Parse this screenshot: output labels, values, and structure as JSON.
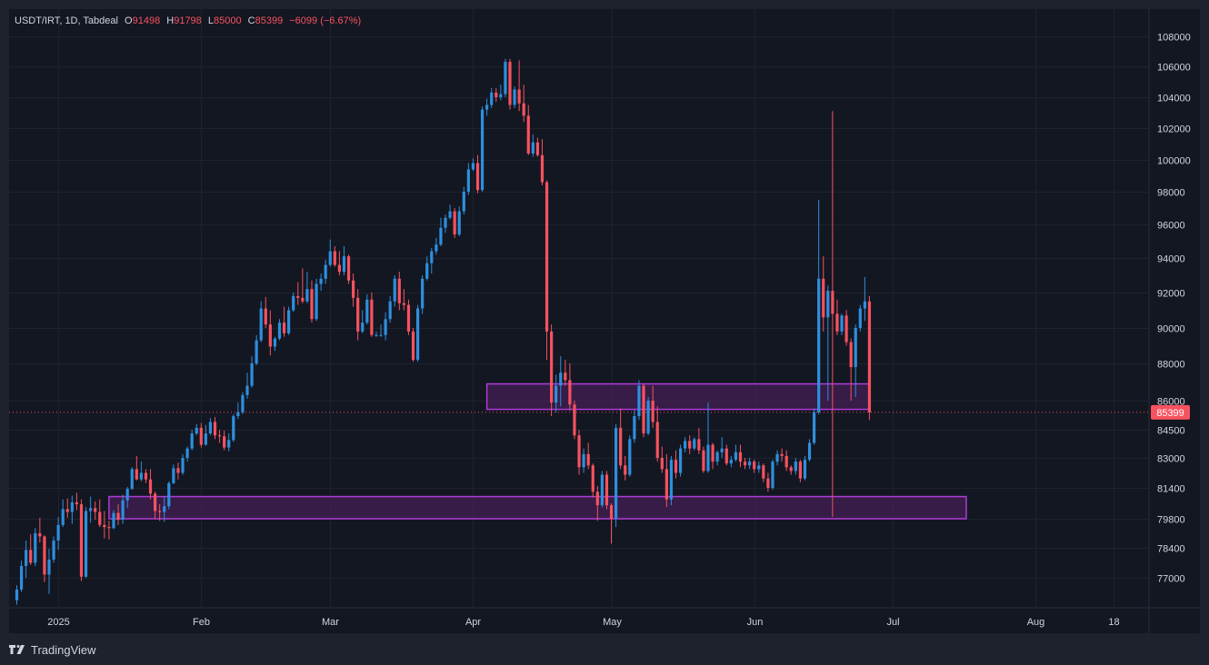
{
  "legend": {
    "symbol": "USDT/IRT",
    "interval": "1D",
    "exchange": "Tabdeal",
    "o_label": "O",
    "o_value": "91498",
    "h_label": "H",
    "h_value": "91798",
    "l_label": "L",
    "l_value": "85000",
    "c_label": "C",
    "c_value": "85399",
    "change": "−6099 (−6.67%)"
  },
  "brand": {
    "name": "TradingView"
  },
  "colors": {
    "background": "#131722",
    "frame": "#1e222d",
    "grid": "#1f232d",
    "text": "#d1d4dc",
    "up": "#2e8fdd",
    "down": "#f7525f",
    "zone_fill": "#4a1f5c",
    "zone_stroke": "#b03ad8"
  },
  "chart_data": {
    "type": "candlestick",
    "symbol": "USDT/IRT",
    "interval": "1D",
    "y_ticks": [
      108000,
      106000,
      104000,
      102000,
      100000,
      98000,
      96000,
      94000,
      92000,
      90000,
      88000,
      86000,
      84500,
      83000,
      81400,
      79800,
      78400,
      77000
    ],
    "y_tick_labels": [
      "108000",
      "106000",
      "104000",
      "102000",
      "100000",
      "98000",
      "96000",
      "94000",
      "92000",
      "90000",
      "88000",
      "86000",
      "84500",
      "83000",
      "81400",
      "79800",
      "78400",
      "77000"
    ],
    "x_tick_labels": [
      "2025",
      "Feb",
      "Mar",
      "Apr",
      "May",
      "Jun",
      "Jul",
      "Aug",
      "18"
    ],
    "x_tick_dates": [
      "2025-01-01",
      "2025-02-01",
      "2025-03-01",
      "2025-04-01",
      "2025-05-01",
      "2025-06-01",
      "2025-07-01",
      "2025-08-01",
      "2025-08-18"
    ],
    "first_date": "2024-12-23",
    "last_close": 85399,
    "last_price_label": "85399",
    "zones": [
      {
        "from_date": "2025-04-04",
        "to_date": "2025-06-26",
        "low": 85550,
        "high": 86900
      },
      {
        "from_date": "2025-01-12",
        "to_date": "2025-07-17",
        "low": 79800,
        "high": 80950
      }
    ],
    "candles": [
      [
        75950,
        76650,
        75750,
        76450
      ],
      [
        76450,
        77800,
        76350,
        77550
      ],
      [
        77550,
        78750,
        77000,
        78300
      ],
      [
        78300,
        79050,
        77600,
        77700
      ],
      [
        77700,
        79350,
        77550,
        79100
      ],
      [
        79100,
        79850,
        78650,
        78950
      ],
      [
        78950,
        79000,
        76800,
        77150
      ],
      [
        77150,
        78350,
        76250,
        77850
      ],
      [
        77850,
        78950,
        77700,
        78750
      ],
      [
        78750,
        79900,
        78300,
        79500
      ],
      [
        79500,
        80800,
        79400,
        80300
      ],
      [
        80300,
        80850,
        79850,
        80150
      ],
      [
        80150,
        81000,
        79550,
        80650
      ],
      [
        80650,
        81150,
        80250,
        80550
      ],
      [
        80550,
        80800,
        76850,
        77050
      ],
      [
        77050,
        80400,
        77000,
        80200
      ],
      [
        80200,
        80950,
        79600,
        80350
      ],
      [
        80350,
        80700,
        79750,
        80150
      ],
      [
        80150,
        80800,
        79400,
        79500
      ],
      [
        79500,
        80200,
        78850,
        79400
      ],
      [
        79400,
        79700,
        78800,
        79350
      ],
      [
        79350,
        80250,
        79300,
        80100
      ],
      [
        80100,
        80550,
        79500,
        79750
      ],
      [
        79750,
        81050,
        79550,
        80750
      ],
      [
        80750,
        81450,
        80350,
        81350
      ],
      [
        81350,
        82500,
        81300,
        82400
      ],
      [
        82400,
        83100,
        81800,
        81850
      ],
      [
        81850,
        82800,
        81750,
        82200
      ],
      [
        82200,
        82400,
        81650,
        81850
      ],
      [
        81850,
        82400,
        80800,
        81100
      ],
      [
        81100,
        81200,
        79800,
        80200
      ],
      [
        80200,
        80550,
        79700,
        80150
      ],
      [
        80150,
        80950,
        79650,
        80450
      ],
      [
        80450,
        81750,
        80300,
        81650
      ],
      [
        81650,
        82650,
        81600,
        82450
      ],
      [
        82450,
        82750,
        81850,
        82200
      ],
      [
        82200,
        83200,
        82100,
        83000
      ],
      [
        83000,
        83600,
        82800,
        83500
      ],
      [
        83500,
        84500,
        83400,
        84300
      ],
      [
        84300,
        84800,
        84200,
        84600
      ],
      [
        84600,
        84850,
        83550,
        83700
      ],
      [
        83700,
        84750,
        83650,
        84300
      ],
      [
        84300,
        85100,
        84200,
        84900
      ],
      [
        84900,
        85150,
        84000,
        84200
      ],
      [
        84200,
        84500,
        83800,
        84150
      ],
      [
        84150,
        84450,
        83400,
        83550
      ],
      [
        83550,
        84300,
        83350,
        83950
      ],
      [
        83950,
        85300,
        83850,
        85200
      ],
      [
        85200,
        85900,
        85050,
        85400
      ],
      [
        85400,
        86450,
        85300,
        86300
      ],
      [
        86300,
        87500,
        86100,
        86800
      ],
      [
        86800,
        88400,
        86700,
        88000
      ],
      [
        88000,
        89600,
        87900,
        89300
      ],
      [
        89300,
        91500,
        89200,
        91100
      ],
      [
        91100,
        91750,
        90000,
        90200
      ],
      [
        90200,
        91000,
        88450,
        88950
      ],
      [
        88950,
        89500,
        88700,
        89400
      ],
      [
        89400,
        90500,
        89300,
        90300
      ],
      [
        90300,
        91200,
        89500,
        89700
      ],
      [
        89700,
        91200,
        89600,
        91000
      ],
      [
        91000,
        92000,
        90900,
        91800
      ],
      [
        91800,
        92600,
        91300,
        91700
      ],
      [
        91700,
        93400,
        91400,
        91500
      ],
      [
        91500,
        93200,
        91400,
        92200
      ],
      [
        92200,
        92700,
        90300,
        90500
      ],
      [
        90500,
        92800,
        90400,
        92500
      ],
      [
        92500,
        93100,
        92100,
        92800
      ],
      [
        92800,
        93900,
        92500,
        93600
      ],
      [
        93600,
        95100,
        93500,
        94400
      ],
      [
        94400,
        94700,
        93500,
        93600
      ],
      [
        93600,
        94400,
        93000,
        93200
      ],
      [
        93200,
        94700,
        93000,
        94100
      ],
      [
        94100,
        94200,
        92500,
        92700
      ],
      [
        92700,
        93100,
        91200,
        91700
      ],
      [
        91700,
        92200,
        89300,
        89800
      ],
      [
        89800,
        91000,
        89700,
        90300
      ],
      [
        90300,
        91900,
        90200,
        91600
      ],
      [
        91600,
        92000,
        89500,
        89600
      ],
      [
        89600,
        89800,
        89500,
        89600
      ],
      [
        89600,
        90200,
        89500,
        89600
      ],
      [
        89600,
        90900,
        89300,
        90500
      ],
      [
        90500,
        91800,
        90300,
        91500
      ],
      [
        91500,
        93000,
        91200,
        92800
      ],
      [
        92800,
        93200,
        91000,
        91400
      ],
      [
        91400,
        92200,
        91000,
        91300
      ],
      [
        91300,
        91600,
        89600,
        89800
      ],
      [
        89800,
        90000,
        88100,
        88200
      ],
      [
        88200,
        91300,
        88100,
        91100
      ],
      [
        91100,
        93000,
        90800,
        92800
      ],
      [
        92800,
        94100,
        92700,
        93700
      ],
      [
        93700,
        94600,
        93100,
        94400
      ],
      [
        94400,
        95200,
        94200,
        94800
      ],
      [
        94800,
        96400,
        94700,
        95800
      ],
      [
        95800,
        96600,
        95500,
        96400
      ],
      [
        96400,
        97200,
        96300,
        96800
      ],
      [
        96800,
        97000,
        95200,
        95400
      ],
      [
        95400,
        97100,
        95300,
        96800
      ],
      [
        96800,
        98300,
        96600,
        98000
      ],
      [
        98000,
        99800,
        97800,
        99400
      ],
      [
        99400,
        100100,
        99300,
        99800
      ],
      [
        99800,
        100300,
        97900,
        98100
      ],
      [
        98100,
        103400,
        98000,
        103200
      ],
      [
        103200,
        103900,
        102800,
        103500
      ],
      [
        103500,
        104600,
        103300,
        104300
      ],
      [
        104300,
        104600,
        103700,
        104000
      ],
      [
        104000,
        104800,
        103800,
        104200
      ],
      [
        104200,
        106500,
        104000,
        106300
      ],
      [
        106300,
        106500,
        103200,
        103500
      ],
      [
        103500,
        104700,
        103300,
        104500
      ],
      [
        104500,
        106400,
        103100,
        103600
      ],
      [
        103600,
        104800,
        102400,
        102800
      ],
      [
        102800,
        103500,
        100300,
        100400
      ],
      [
        100400,
        101600,
        100200,
        101100
      ],
      [
        101100,
        101400,
        100200,
        100300
      ],
      [
        100300,
        101300,
        98400,
        98600
      ],
      [
        98600,
        98700,
        88200,
        89800
      ],
      [
        89800,
        90200,
        85200,
        85900
      ],
      [
        85900,
        87400,
        85400,
        86800
      ],
      [
        86800,
        88400,
        85700,
        87500
      ],
      [
        87500,
        88200,
        86800,
        87100
      ],
      [
        87100,
        88000,
        85500,
        85800
      ],
      [
        85800,
        86000,
        84000,
        84200
      ],
      [
        84200,
        84500,
        82100,
        82500
      ],
      [
        82500,
        83500,
        82200,
        83200
      ],
      [
        83200,
        83800,
        82400,
        82600
      ],
      [
        82600,
        82700,
        80900,
        81200
      ],
      [
        81200,
        81500,
        79700,
        80500
      ],
      [
        80500,
        82300,
        80400,
        82100
      ],
      [
        82100,
        82300,
        80300,
        80500
      ],
      [
        80500,
        80600,
        78600,
        79800
      ],
      [
        79800,
        84800,
        79400,
        84600
      ],
      [
        84600,
        85600,
        82400,
        82600
      ],
      [
        82600,
        83100,
        81800,
        82100
      ],
      [
        82100,
        84200,
        82000,
        84000
      ],
      [
        84000,
        85500,
        83800,
        85200
      ],
      [
        85200,
        87100,
        85000,
        86800
      ],
      [
        86800,
        86900,
        84100,
        84300
      ],
      [
        84300,
        86200,
        84200,
        86000
      ],
      [
        86000,
        86800,
        84600,
        84900
      ],
      [
        84900,
        85700,
        82800,
        83000
      ],
      [
        83000,
        83600,
        82200,
        82400
      ],
      [
        82400,
        83200,
        80400,
        80800
      ],
      [
        80800,
        83100,
        80500,
        82900
      ],
      [
        82900,
        83400,
        81900,
        82200
      ],
      [
        82200,
        83700,
        82000,
        83500
      ],
      [
        83500,
        84100,
        83300,
        83900
      ],
      [
        83900,
        84200,
        83200,
        83500
      ],
      [
        83500,
        84100,
        83400,
        84000
      ],
      [
        84000,
        84600,
        83200,
        83400
      ],
      [
        83400,
        83600,
        82200,
        82300
      ],
      [
        82300,
        85900,
        82200,
        83700
      ],
      [
        83700,
        83800,
        82400,
        82800
      ],
      [
        82800,
        83400,
        82600,
        83300
      ],
      [
        83300,
        84100,
        83000,
        83500
      ],
      [
        83500,
        83700,
        82600,
        82700
      ],
      [
        82700,
        83100,
        82500,
        82900
      ],
      [
        82900,
        83700,
        82800,
        83300
      ],
      [
        83300,
        83700,
        82500,
        82800
      ],
      [
        82800,
        83000,
        82400,
        82600
      ],
      [
        82600,
        83000,
        82400,
        82800
      ],
      [
        82800,
        82900,
        82200,
        82400
      ],
      [
        82400,
        82800,
        82200,
        82600
      ],
      [
        82600,
        82700,
        81700,
        81900
      ],
      [
        81900,
        82200,
        81200,
        81400
      ],
      [
        81400,
        82900,
        81300,
        82800
      ],
      [
        82800,
        83400,
        82600,
        83200
      ],
      [
        83200,
        83500,
        82800,
        83100
      ],
      [
        83100,
        83400,
        82300,
        82500
      ],
      [
        82500,
        82600,
        82100,
        82300
      ],
      [
        82300,
        83000,
        82100,
        82800
      ],
      [
        82800,
        82900,
        81700,
        81900
      ],
      [
        81900,
        83100,
        81800,
        82900
      ],
      [
        82900,
        84000,
        82800,
        83800
      ],
      [
        83800,
        85600,
        83700,
        85400
      ],
      [
        85400,
        97500,
        85300,
        92800
      ],
      [
        92800,
        94100,
        89800,
        90600
      ],
      [
        90600,
        92400,
        86000,
        92100
      ],
      [
        92100,
        103100,
        79900,
        90800
      ],
      [
        90800,
        91600,
        89600,
        89800
      ],
      [
        89800,
        90800,
        89600,
        90700
      ],
      [
        90700,
        91000,
        89000,
        89200
      ],
      [
        89200,
        89400,
        86000,
        87800
      ],
      [
        87800,
        90200,
        86200,
        90000
      ],
      [
        90000,
        91300,
        89800,
        91100
      ],
      [
        91100,
        92900,
        90400,
        91500
      ],
      [
        91498,
        91798,
        85000,
        85399
      ]
    ]
  }
}
